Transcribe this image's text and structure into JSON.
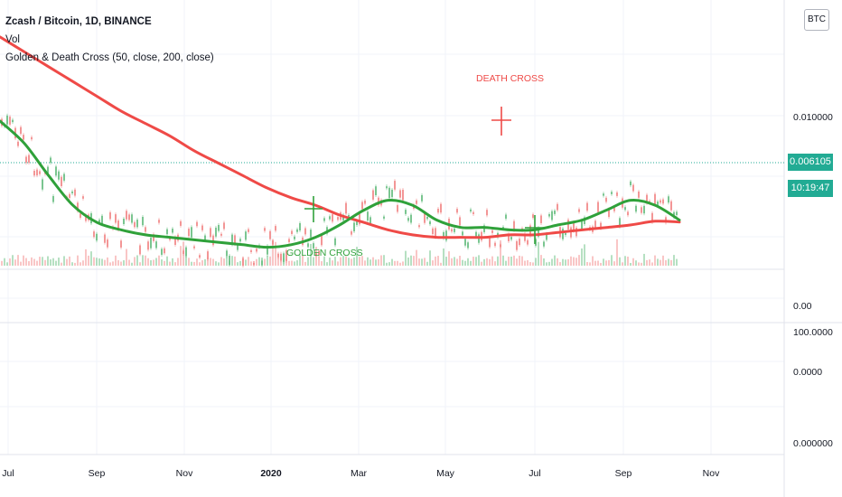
{
  "header": {
    "symbol_title": "Zcash / Bitcoin, 1D, BINANCE",
    "volume_label": "Vol",
    "indicator_label": "Golden & Death Cross (50, close, 200, close)"
  },
  "currency_badge": "BTC",
  "price_tag": "0.006105",
  "countdown_tag": "10:19:47",
  "colors": {
    "sma50": "#2fa13a",
    "sma200": "#ef4a47",
    "candle_up": "#6bbf84",
    "candle_down": "#f28b8b",
    "price_tag": "#22ab94"
  },
  "chart_data": {
    "type": "line",
    "x_axis_ticks": [
      "Jul",
      "Sep",
      "Nov",
      "2020",
      "Mar",
      "May",
      "Jul",
      "Sep",
      "Nov"
    ],
    "x_axis_bold_tick": "2020",
    "main_pane": {
      "price_ticks": [
        "0.010000"
      ],
      "last_price": "0.006105",
      "series": [
        {
          "id": "sma200",
          "values": [
            0.0136,
            0.013,
            0.0124,
            0.0118,
            0.0112,
            0.0106,
            0.0101,
            0.0096,
            0.009,
            0.0085,
            0.008,
            0.0075,
            0.0071,
            0.0068,
            0.0064,
            0.0061,
            0.0058,
            0.0056,
            0.0055,
            0.0055,
            0.0055,
            0.0056,
            0.0056,
            0.0057,
            0.0058,
            0.0059,
            0.006,
            0.00615,
            0.00612
          ]
        },
        {
          "id": "sma50",
          "values": [
            0.0102,
            0.0093,
            0.008,
            0.0068,
            0.0061,
            0.0058,
            0.0056,
            0.0055,
            0.0054,
            0.0053,
            0.0052,
            0.0051,
            0.0052,
            0.0055,
            0.006,
            0.0066,
            0.007,
            0.0068,
            0.0062,
            0.0059,
            0.0059,
            0.0058,
            0.0058,
            0.006,
            0.0062,
            0.0066,
            0.007,
            0.0068,
            0.0062
          ]
        }
      ],
      "annotations": [
        {
          "text": "DEATH CROSS",
          "kind": "death"
        },
        {
          "text": "GOLDEN CROSS",
          "kind": "golden"
        }
      ]
    },
    "volume_pane": {
      "ticks": [
        "0.00"
      ]
    },
    "lower_pane": {
      "ticks": [
        "100.0000",
        "0.0000",
        "0.000000"
      ]
    }
  }
}
